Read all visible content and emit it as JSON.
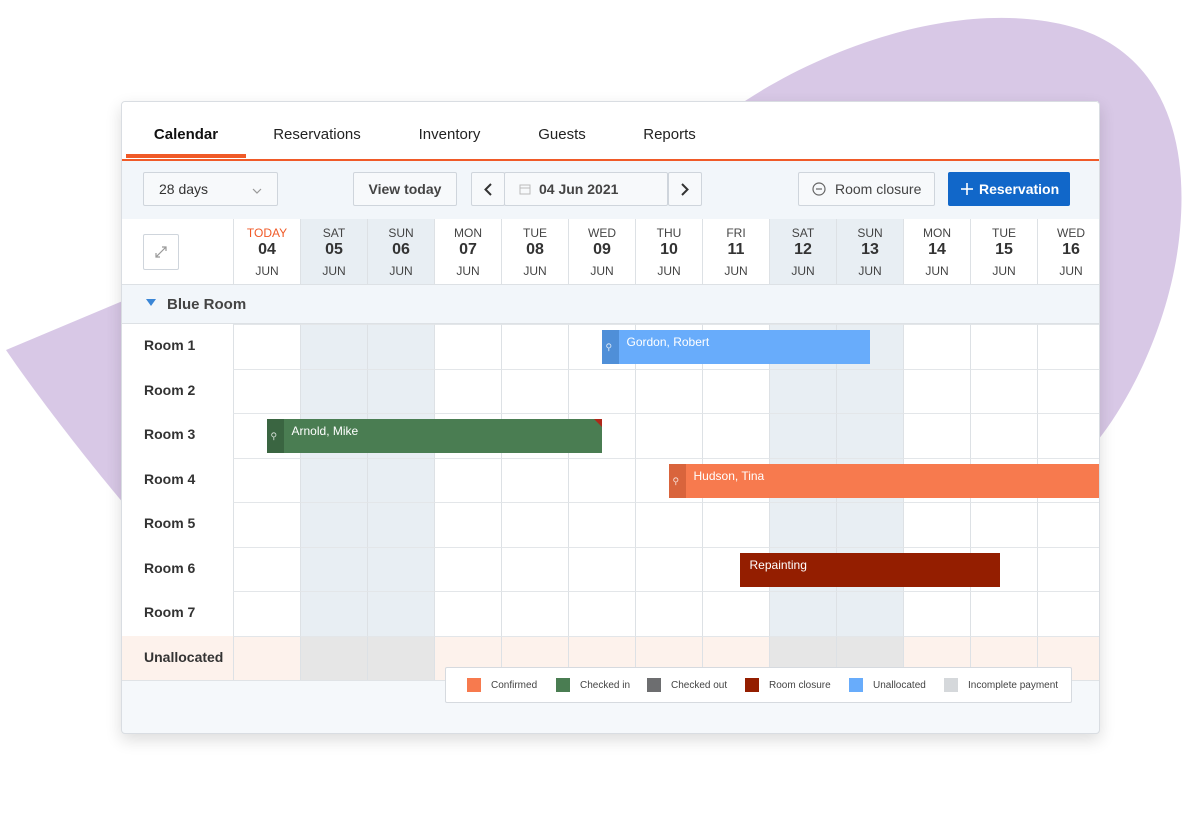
{
  "colors": {
    "accent": "#f05a28",
    "primary": "#1167c9",
    "confirmed": "#f77a4e",
    "checked_in": "#4a7d52",
    "checked_out": "#6d6e70",
    "room_closure": "#941e00",
    "unallocated": "#68acfb",
    "incomplete_payment": "#d5d8db",
    "blob": "#d8c8e6"
  },
  "tabs": [
    {
      "label": "Calendar",
      "active": true
    },
    {
      "label": "Reservations"
    },
    {
      "label": "Inventory"
    },
    {
      "label": "Guests"
    },
    {
      "label": "Reports"
    }
  ],
  "toolbar": {
    "range_select": "28 days",
    "view_today": "View today",
    "date": "04 Jun 2021",
    "room_closure": "Room closure",
    "reservation": "Reservation",
    "icons": [
      "chevron-down-icon",
      "chevron-left-icon",
      "calendar-icon",
      "chevron-right-icon",
      "minus-circle-icon",
      "plus-icon",
      "expand-icon"
    ]
  },
  "days": [
    {
      "dow": "TODAY",
      "day": "04",
      "mon": "JUN",
      "today": true
    },
    {
      "dow": "SAT",
      "day": "05",
      "mon": "JUN",
      "weekend": true
    },
    {
      "dow": "SUN",
      "day": "06",
      "mon": "JUN",
      "weekend": true
    },
    {
      "dow": "MON",
      "day": "07",
      "mon": "JUN"
    },
    {
      "dow": "TUE",
      "day": "08",
      "mon": "JUN"
    },
    {
      "dow": "WED",
      "day": "09",
      "mon": "JUN"
    },
    {
      "dow": "THU",
      "day": "10",
      "mon": "JUN"
    },
    {
      "dow": "FRI",
      "day": "11",
      "mon": "JUN"
    },
    {
      "dow": "SAT",
      "day": "12",
      "mon": "JUN",
      "weekend": true
    },
    {
      "dow": "SUN",
      "day": "13",
      "mon": "JUN",
      "weekend": true
    },
    {
      "dow": "MON",
      "day": "14",
      "mon": "JUN"
    },
    {
      "dow": "TUE",
      "day": "15",
      "mon": "JUN"
    },
    {
      "dow": "WED",
      "day": "16",
      "mon": "JUN"
    }
  ],
  "group": {
    "name": "Blue Room",
    "icon": "caret-down-icon"
  },
  "rooms": [
    "Room 1",
    "Room 2",
    "Room 3",
    "Room 4",
    "Room 5",
    "Room 6",
    "Room 7"
  ],
  "unallocated_label": "Unallocated",
  "bookings": [
    {
      "name": "Gordon, Robert",
      "room": "Room 1",
      "start": "09 Jun",
      "end": "13 Jun",
      "status": "unallocated"
    },
    {
      "name": "Arnold, Mike",
      "room": "Room 3",
      "start": "04 Jun",
      "end": "09 Jun",
      "status": "checked_in"
    },
    {
      "name": "Hudson, Tina",
      "room": "Room 4",
      "start": "10 Jun",
      "end": "16 Jun",
      "status": "confirmed"
    },
    {
      "name": "Repainting",
      "room": "Room 6",
      "start": "11 Jun",
      "end": "15 Jun",
      "status": "room_closure"
    }
  ],
  "legend": [
    {
      "label": "Confirmed",
      "color": "#f77a4e"
    },
    {
      "label": "Checked in",
      "color": "#4a7d52"
    },
    {
      "label": "Checked out",
      "color": "#6d6e70"
    },
    {
      "label": "Room closure",
      "color": "#941e00"
    },
    {
      "label": "Unallocated",
      "color": "#68acfb"
    },
    {
      "label": "Incomplete payment",
      "color": "#d5d8db"
    }
  ]
}
